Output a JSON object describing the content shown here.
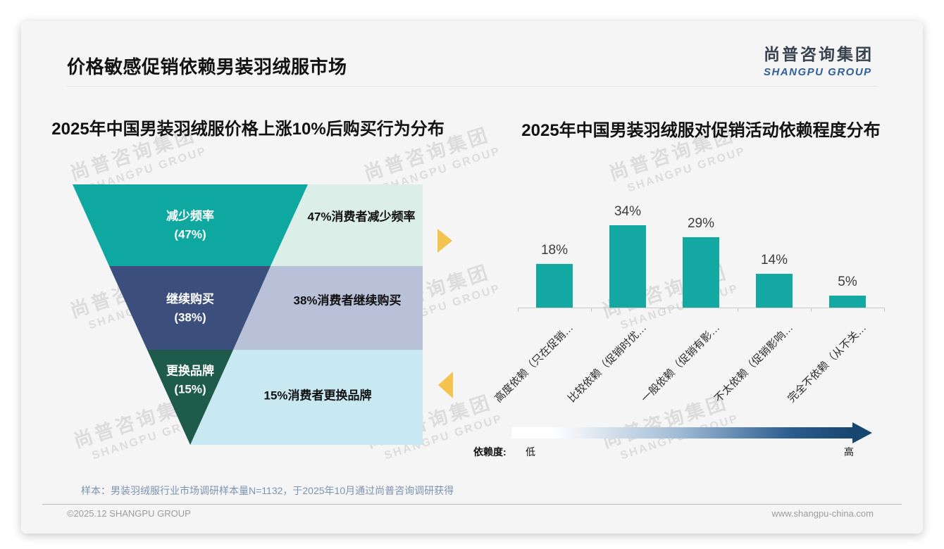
{
  "header": {
    "title": "价格敏感促销依赖男装羽绒服市场",
    "logo_cn": "尚普咨询集团",
    "logo_en": "SHANGPU GROUP"
  },
  "watermark": {
    "line1": "尚普咨询集团",
    "line2": "SHANGPU GROUP"
  },
  "chart_data": [
    {
      "type": "funnel",
      "title": "2025年中国男装羽绒服价格上涨10%后购买行为分布",
      "categories": [
        "减少频率",
        "继续购买",
        "更换品牌"
      ],
      "values": [
        47,
        38,
        15
      ],
      "value_labels": [
        "(47%)",
        "(38%)",
        "(15%)"
      ],
      "annotations": [
        "47%消费者减少频率",
        "38%消费者继续购买",
        "15%消费者更换品牌"
      ],
      "segment_colors": [
        "#0FA8A0",
        "#3C4E7C",
        "#1E5B4A"
      ],
      "panel_colors": [
        "#DCEEE8",
        "#B8C1D8",
        "#C8E8F2"
      ],
      "accent_arrow_color": "#F4C24E"
    },
    {
      "type": "bar",
      "title": "2025年中国男装羽绒服对促销活动依赖程度分布",
      "categories": [
        "高度依赖（只在促销…",
        "比较依赖（促销时优…",
        "一般依赖（促销有影…",
        "不太依赖（促销影响…",
        "完全不依赖（从不关…"
      ],
      "values": [
        18,
        34,
        29,
        14,
        5
      ],
      "value_labels": [
        "18%",
        "34%",
        "29%",
        "14%",
        "5%"
      ],
      "bar_color": "#13A8A2",
      "ylim": [
        0,
        40
      ],
      "grid": false,
      "dependency_axis": {
        "label": "依赖度:",
        "low": "低",
        "high": "高",
        "gradient": [
          "#FFFFFF",
          "#17466F"
        ]
      }
    }
  ],
  "footer": {
    "sample_note": "样本：男装羽绒服行业市场调研样本量N=1132，于2025年10月通过尚普咨询调研获得",
    "copyright": "©2025.12 SHANGPU GROUP",
    "website": "www.shangpu-china.com"
  }
}
